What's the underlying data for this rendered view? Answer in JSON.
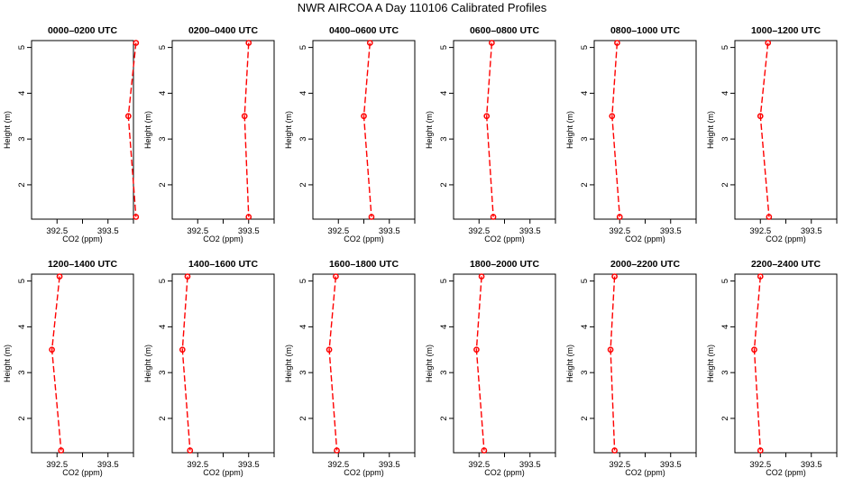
{
  "page": {
    "title": "NWR AIRCOA A  Day 110106  Calibrated Profiles"
  },
  "colors": {
    "series": "#ff0000",
    "axis": "#000000",
    "background": "#ffffff"
  },
  "chart_data": [
    {
      "type": "line",
      "title": "0000–0200 UTC",
      "xlabel": "CO2 (ppm)",
      "ylabel": "Height (m)",
      "xlim": [
        392.0,
        394.0
      ],
      "ylim": [
        1.25,
        5.15
      ],
      "xticks": [
        392.5,
        393,
        393.5,
        394
      ],
      "xtick_labels": [
        "392.5",
        "",
        "393.5",
        ""
      ],
      "yticks": [
        2,
        3,
        4,
        5
      ],
      "ytick_labels": [
        "2",
        "3",
        "4",
        "5"
      ],
      "grid": false,
      "series": [
        {
          "x": [
            394.05,
            393.9,
            394.05
          ],
          "y": [
            5.1,
            3.5,
            1.3
          ]
        }
      ]
    },
    {
      "type": "line",
      "title": "0200–0400 UTC",
      "xlabel": "CO2 (ppm)",
      "ylabel": "Height (m)",
      "xlim": [
        392.0,
        394.0
      ],
      "ylim": [
        1.25,
        5.15
      ],
      "xticks": [
        392.5,
        393,
        393.5,
        394
      ],
      "xtick_labels": [
        "392.5",
        "",
        "393.5",
        ""
      ],
      "yticks": [
        2,
        3,
        4,
        5
      ],
      "ytick_labels": [
        "2",
        "3",
        "4",
        "5"
      ],
      "grid": false,
      "series": [
        {
          "x": [
            393.5,
            393.42,
            393.5
          ],
          "y": [
            5.1,
            3.5,
            1.3
          ]
        }
      ]
    },
    {
      "type": "line",
      "title": "0400–0600 UTC",
      "xlabel": "CO2 (ppm)",
      "ylabel": "Height (m)",
      "xlim": [
        392.0,
        394.0
      ],
      "ylim": [
        1.25,
        5.15
      ],
      "xticks": [
        392.5,
        393,
        393.5,
        394
      ],
      "xtick_labels": [
        "392.5",
        "",
        "393.5",
        ""
      ],
      "yticks": [
        2,
        3,
        4,
        5
      ],
      "ytick_labels": [
        "2",
        "3",
        "4",
        "5"
      ],
      "grid": false,
      "series": [
        {
          "x": [
            393.12,
            393.0,
            393.15
          ],
          "y": [
            5.1,
            3.5,
            1.3
          ]
        }
      ]
    },
    {
      "type": "line",
      "title": "0600–0800 UTC",
      "xlabel": "CO2 (ppm)",
      "ylabel": "Height (m)",
      "xlim": [
        392.0,
        394.0
      ],
      "ylim": [
        1.25,
        5.15
      ],
      "xticks": [
        392.5,
        393,
        393.5,
        394
      ],
      "xtick_labels": [
        "392.5",
        "",
        "393.5",
        ""
      ],
      "yticks": [
        2,
        3,
        4,
        5
      ],
      "ytick_labels": [
        "2",
        "3",
        "4",
        "5"
      ],
      "grid": false,
      "series": [
        {
          "x": [
            392.75,
            392.65,
            392.78
          ],
          "y": [
            5.1,
            3.5,
            1.3
          ]
        }
      ]
    },
    {
      "type": "line",
      "title": "0800–1000 UTC",
      "xlabel": "CO2 (ppm)",
      "ylabel": "Height (m)",
      "xlim": [
        392.0,
        394.0
      ],
      "ylim": [
        1.25,
        5.15
      ],
      "xticks": [
        392.5,
        393,
        393.5,
        394
      ],
      "xtick_labels": [
        "392.5",
        "",
        "393.5",
        ""
      ],
      "yticks": [
        2,
        3,
        4,
        5
      ],
      "ytick_labels": [
        "2",
        "3",
        "4",
        "5"
      ],
      "grid": false,
      "series": [
        {
          "x": [
            392.45,
            392.35,
            392.5
          ],
          "y": [
            5.1,
            3.5,
            1.3
          ]
        }
      ]
    },
    {
      "type": "line",
      "title": "1000–1200 UTC",
      "xlabel": "CO2 (ppm)",
      "ylabel": "Height (m)",
      "xlim": [
        392.0,
        394.0
      ],
      "ylim": [
        1.25,
        5.15
      ],
      "xticks": [
        392.5,
        393,
        393.5,
        394
      ],
      "xtick_labels": [
        "392.5",
        "",
        "393.5",
        ""
      ],
      "yticks": [
        2,
        3,
        4,
        5
      ],
      "ytick_labels": [
        "2",
        "3",
        "4",
        "5"
      ],
      "grid": false,
      "series": [
        {
          "x": [
            392.65,
            392.5,
            392.67
          ],
          "y": [
            5.1,
            3.5,
            1.3
          ]
        }
      ]
    },
    {
      "type": "line",
      "title": "1200–1400 UTC",
      "xlabel": "CO2 (ppm)",
      "ylabel": "Height (m)",
      "xlim": [
        392.0,
        394.0
      ],
      "ylim": [
        1.25,
        5.15
      ],
      "xticks": [
        392.5,
        393,
        393.5,
        394
      ],
      "xtick_labels": [
        "392.5",
        "",
        "393.5",
        ""
      ],
      "yticks": [
        2,
        3,
        4,
        5
      ],
      "ytick_labels": [
        "2",
        "3",
        "4",
        "5"
      ],
      "grid": false,
      "series": [
        {
          "x": [
            392.55,
            392.4,
            392.58
          ],
          "y": [
            5.1,
            3.5,
            1.3
          ]
        }
      ]
    },
    {
      "type": "line",
      "title": "1400–1600 UTC",
      "xlabel": "CO2 (ppm)",
      "ylabel": "Height (m)",
      "xlim": [
        392.0,
        394.0
      ],
      "ylim": [
        1.25,
        5.15
      ],
      "xticks": [
        392.5,
        393,
        393.5,
        394
      ],
      "xtick_labels": [
        "392.5",
        "",
        "393.5",
        ""
      ],
      "yticks": [
        2,
        3,
        4,
        5
      ],
      "ytick_labels": [
        "2",
        "3",
        "4",
        "5"
      ],
      "grid": false,
      "series": [
        {
          "x": [
            392.3,
            392.2,
            392.35
          ],
          "y": [
            5.1,
            3.5,
            1.3
          ]
        }
      ]
    },
    {
      "type": "line",
      "title": "1600–1800 UTC",
      "xlabel": "CO2 (ppm)",
      "ylabel": "Height (m)",
      "xlim": [
        392.0,
        394.0
      ],
      "ylim": [
        1.25,
        5.15
      ],
      "xticks": [
        392.5,
        393,
        393.5,
        394
      ],
      "xtick_labels": [
        "392.5",
        "",
        "393.5",
        ""
      ],
      "yticks": [
        2,
        3,
        4,
        5
      ],
      "ytick_labels": [
        "2",
        "3",
        "4",
        "5"
      ],
      "grid": false,
      "series": [
        {
          "x": [
            392.45,
            392.32,
            392.47
          ],
          "y": [
            5.1,
            3.5,
            1.3
          ]
        }
      ]
    },
    {
      "type": "line",
      "title": "1800–2000 UTC",
      "xlabel": "CO2 (ppm)",
      "ylabel": "Height (m)",
      "xlim": [
        392.0,
        394.0
      ],
      "ylim": [
        1.25,
        5.15
      ],
      "xticks": [
        392.5,
        393,
        393.5,
        394
      ],
      "xtick_labels": [
        "392.5",
        "",
        "393.5",
        ""
      ],
      "yticks": [
        2,
        3,
        4,
        5
      ],
      "ytick_labels": [
        "2",
        "3",
        "4",
        "5"
      ],
      "grid": false,
      "series": [
        {
          "x": [
            392.55,
            392.45,
            392.6
          ],
          "y": [
            5.1,
            3.5,
            1.3
          ]
        }
      ]
    },
    {
      "type": "line",
      "title": "2000–2200 UTC",
      "xlabel": "CO2 (ppm)",
      "ylabel": "Height (m)",
      "xlim": [
        392.0,
        394.0
      ],
      "ylim": [
        1.25,
        5.15
      ],
      "xticks": [
        392.5,
        393,
        393.5,
        394
      ],
      "xtick_labels": [
        "392.5",
        "",
        "393.5",
        ""
      ],
      "yticks": [
        2,
        3,
        4,
        5
      ],
      "ytick_labels": [
        "2",
        "3",
        "4",
        "5"
      ],
      "grid": false,
      "series": [
        {
          "x": [
            392.4,
            392.32,
            392.4
          ],
          "y": [
            5.1,
            3.5,
            1.3
          ]
        }
      ]
    },
    {
      "type": "line",
      "title": "2200–2400 UTC",
      "xlabel": "CO2 (ppm)",
      "ylabel": "Height (m)",
      "xlim": [
        392.0,
        394.0
      ],
      "ylim": [
        1.25,
        5.15
      ],
      "xticks": [
        392.5,
        393,
        393.5,
        394
      ],
      "xtick_labels": [
        "392.5",
        "",
        "393.5",
        ""
      ],
      "yticks": [
        2,
        3,
        4,
        5
      ],
      "ytick_labels": [
        "2",
        "3",
        "4",
        "5"
      ],
      "grid": false,
      "series": [
        {
          "x": [
            392.5,
            392.38,
            392.5
          ],
          "y": [
            5.1,
            3.5,
            1.3
          ]
        }
      ]
    }
  ]
}
